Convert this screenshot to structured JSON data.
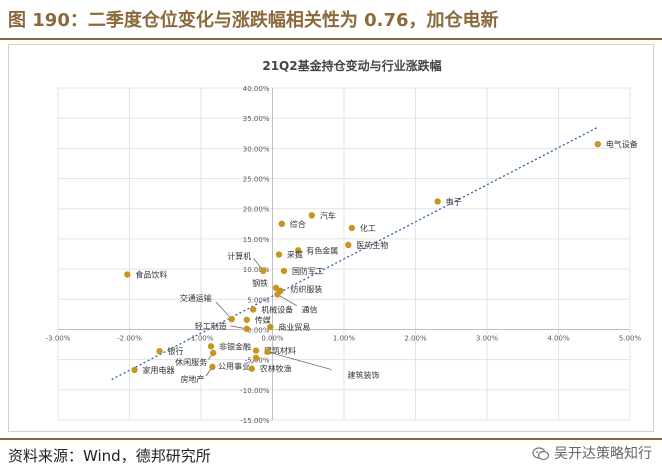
{
  "figure": {
    "title": "图 190：二季度仓位变化与涨跌幅相关性为 0.76，加仓电新",
    "source": "资料来源：Wind，德邦研究所",
    "watermark": "吴开达策略知行"
  },
  "colors": {
    "accent": "#8a6a3b",
    "point": "#c8961e",
    "trend": "#2f5fb0",
    "grid": "#e3e3e3",
    "axis": "#bfbfbf"
  },
  "chart_data": {
    "type": "scatter",
    "title": "21Q2基金持仓变动与行业涨跌幅",
    "xlabel": "",
    "ylabel": "",
    "xlim": [
      -0.03,
      0.05
    ],
    "ylim": [
      -0.15,
      0.4
    ],
    "xticks": [
      -0.03,
      -0.02,
      -0.01,
      0.0,
      0.01,
      0.02,
      0.03,
      0.04,
      0.05
    ],
    "yticks": [
      -0.15,
      -0.1,
      -0.05,
      0.0,
      0.05,
      0.1,
      0.15,
      0.2,
      0.25,
      0.3,
      0.35,
      0.4
    ],
    "xtick_labels": [
      "-3.00%",
      "-2.00%",
      "-1.00%",
      "0.00%",
      "1.00%",
      "2.00%",
      "3.00%",
      "4.00%",
      "5.00%"
    ],
    "ytick_labels": [
      "-15.00%",
      "-10.00%",
      "-5.00%",
      "0.00%",
      "5.00%",
      "10.00%",
      "15.00%",
      "20.00%",
      "25.00%",
      "30.00%",
      "35.00%",
      "40.00%"
    ],
    "grid": true,
    "legend": "none",
    "trendline": {
      "x": [
        -0.0225,
        0.0455
      ],
      "y": [
        -0.083,
        0.335
      ]
    },
    "points": [
      {
        "name": "电气设备",
        "x": 0.0455,
        "y": 0.307
      },
      {
        "name": "电子",
        "x": 0.0231,
        "y": 0.212
      },
      {
        "name": "汽车",
        "x": 0.0055,
        "y": 0.189
      },
      {
        "name": "化工",
        "x": 0.0111,
        "y": 0.168
      },
      {
        "name": "综合",
        "x": 0.0013,
        "y": 0.175
      },
      {
        "name": "有色金属",
        "x": 0.0036,
        "y": 0.131
      },
      {
        "name": "医药生物",
        "x": 0.0106,
        "y": 0.14
      },
      {
        "name": "采掘",
        "x": 0.0009,
        "y": 0.124
      },
      {
        "name": "计算机",
        "x": -0.0013,
        "y": 0.097
      },
      {
        "name": "国防军工",
        "x": 0.0016,
        "y": 0.097
      },
      {
        "name": "食品饮料",
        "x": -0.0203,
        "y": 0.091
      },
      {
        "name": "钢铁",
        "x": 0.0005,
        "y": 0.069
      },
      {
        "name": "纺织服装",
        "x": 0.0011,
        "y": 0.064
      },
      {
        "name": "通信",
        "x": 0.0007,
        "y": 0.058
      },
      {
        "name": "交通运输",
        "x": -0.0057,
        "y": 0.017
      },
      {
        "name": "机械设备",
        "x": -0.0027,
        "y": 0.033
      },
      {
        "name": "传媒",
        "x": -0.0036,
        "y": 0.016
      },
      {
        "name": "轻工制造",
        "x": -0.0036,
        "y": 0.001
      },
      {
        "name": "商业贸易",
        "x": -0.0003,
        "y": 0.004
      },
      {
        "name": "银行",
        "x": -0.0158,
        "y": -0.036
      },
      {
        "name": "非银金融",
        "x": -0.0086,
        "y": -0.028
      },
      {
        "name": "建筑材料",
        "x": -0.0023,
        "y": -0.035
      },
      {
        "name": "休闲服务",
        "x": -0.0083,
        "y": -0.039
      },
      {
        "name": "公用事业",
        "x": -0.0023,
        "y": -0.047
      },
      {
        "name": "建筑装饰",
        "x": -0.0007,
        "y": -0.037
      },
      {
        "name": "家用电器",
        "x": -0.0193,
        "y": -0.067
      },
      {
        "name": "房地产",
        "x": -0.0084,
        "y": -0.062
      },
      {
        "name": "农林牧渔",
        "x": -0.0029,
        "y": -0.065
      }
    ]
  }
}
